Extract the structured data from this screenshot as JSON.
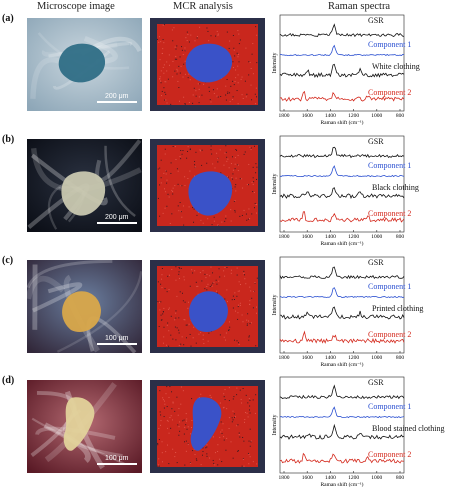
{
  "headers": {
    "micro": "Microscope image",
    "mcr": "MCR analysis",
    "raman": "Raman spectra"
  },
  "axis": {
    "ylabel": "Intensity",
    "xlabel": "Raman shift (cm⁻¹)",
    "ticks": [
      "1800",
      "1600",
      "1400",
      "1200",
      "1000",
      "800"
    ]
  },
  "colors": {
    "gsr": "#111111",
    "component1": "#2a4fd0",
    "clothing": "#111111",
    "component2": "#d42a1e",
    "mcr_red": "#c9271d",
    "mcr_blue": "#3a52c8"
  },
  "panels": [
    {
      "label": "(a)",
      "scale": "200 μm",
      "labels": {
        "gsr": "GSR",
        "c1": "Component 1",
        "clothing": "White clothing",
        "c2": "Component 2"
      }
    },
    {
      "label": "(b)",
      "scale": "200 μm",
      "labels": {
        "gsr": "GSR",
        "c1": "Component 1",
        "clothing": "Black clothing",
        "c2": "Component 2"
      }
    },
    {
      "label": "(c)",
      "scale": "100 μm",
      "labels": {
        "gsr": "GSR",
        "c1": "Component 1",
        "clothing": "Printed clothing",
        "c2": "Component 2"
      }
    },
    {
      "label": "(d)",
      "scale": "100 μm",
      "labels": {
        "gsr": "GSR",
        "c1": "Component 1",
        "clothing": "Blood stained clothing",
        "c2": "Component 2"
      }
    }
  ]
}
